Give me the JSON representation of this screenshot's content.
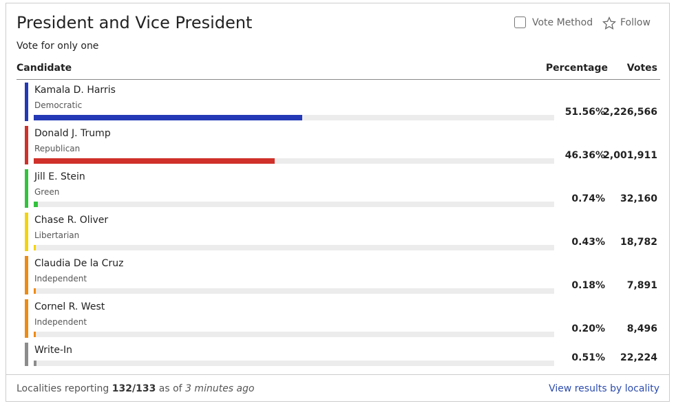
{
  "header": {
    "title": "President and Vice President",
    "subtitle": "Vote for only one",
    "vote_method": "Vote Method",
    "follow": "Follow"
  },
  "columns": {
    "candidate": "Candidate",
    "percentage": "Percentage",
    "votes": "Votes"
  },
  "xlim": [
    0,
    100
  ],
  "rows": [
    {
      "name": "Kamala D. Harris",
      "party": "Democratic",
      "color": "#2339b5",
      "percentage": 51.56,
      "percentage_label": "51.56%",
      "votes": "2,226,566"
    },
    {
      "name": "Donald J. Trump",
      "party": "Republican",
      "color": "#d0312a",
      "percentage": 46.36,
      "percentage_label": "46.36%",
      "votes": "2,001,911"
    },
    {
      "name": "Jill E. Stein",
      "party": "Green",
      "color": "#33c23c",
      "percentage": 0.74,
      "percentage_label": "0.74%",
      "votes": "32,160"
    },
    {
      "name": "Chase R. Oliver",
      "party": "Libertarian",
      "color": "#f3d40c",
      "percentage": 0.43,
      "percentage_label": "0.43%",
      "votes": "18,782"
    },
    {
      "name": "Claudia De la Cruz",
      "party": "Independent",
      "color": "#ee8b12",
      "percentage": 0.18,
      "percentage_label": "0.18%",
      "votes": "7,891"
    },
    {
      "name": "Cornel R. West",
      "party": "Independent",
      "color": "#ee8b12",
      "percentage": 0.2,
      "percentage_label": "0.20%",
      "votes": "8,496"
    },
    {
      "name": "Write-In",
      "color": "#8c8c8c",
      "percentage": 0.51,
      "percentage_label": "0.51%",
      "votes": "22,224"
    }
  ],
  "footer": {
    "prefix": "Localities reporting",
    "count": "132/133",
    "as_of": "as of",
    "time": "3 minutes ago",
    "link": "View results by locality"
  }
}
